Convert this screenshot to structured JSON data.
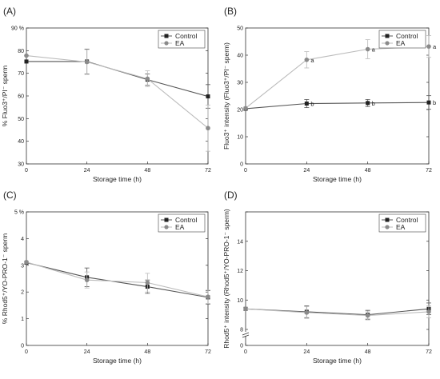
{
  "figure": {
    "background": "#ffffff"
  },
  "series_styles": {
    "Control": {
      "color": "#222222",
      "line": "#555555",
      "marker": "square"
    },
    "EA": {
      "color": "#8a8a8a",
      "line": "#bbbbbb",
      "marker": "circle"
    }
  },
  "chart_data": [
    {
      "id": "A",
      "panel_label": "(A)",
      "type": "line",
      "x": [
        0,
        24,
        48,
        72
      ],
      "xticks": [
        "0",
        "24",
        "48",
        "72"
      ],
      "xlabel": "Storage time (h)",
      "ylabel": "% Fluo3⁺/PI⁻ sperm",
      "ylim": [
        30,
        90
      ],
      "yticks": [
        30,
        40,
        50,
        60,
        70,
        80,
        90
      ],
      "ytick_labels": [
        "30",
        "40",
        "50",
        "60",
        "70",
        "80",
        "90 %"
      ],
      "axis_break": false,
      "legend": {
        "position": "top-right",
        "entries": [
          "Control",
          "EA"
        ]
      },
      "series": [
        {
          "name": "Control",
          "values": [
            75.2,
            75.2,
            67.2,
            59.8
          ],
          "errors": [
            0,
            5.5,
            2.5,
            5.2
          ],
          "labels": [
            "",
            "",
            "",
            ""
          ]
        },
        {
          "name": "EA",
          "values": [
            77.8,
            75.0,
            67.6,
            45.8
          ],
          "errors": [
            0,
            5.5,
            3.5,
            10.2
          ],
          "labels": [
            "",
            "",
            "",
            ""
          ]
        }
      ]
    },
    {
      "id": "B",
      "panel_label": "(B)",
      "type": "line",
      "x": [
        0,
        24,
        48,
        72
      ],
      "xticks": [
        "0",
        "24",
        "48",
        "72"
      ],
      "xlabel": "Storage time (h)",
      "ylabel": "Fluo3⁺ intensity (Fluo3⁺/PI⁻ sperm)",
      "ylim": [
        0,
        50
      ],
      "yticks": [
        0,
        10,
        20,
        30,
        40,
        50
      ],
      "ytick_labels": [
        "0",
        "10",
        "20",
        "30",
        "40",
        "50"
      ],
      "axis_break": false,
      "legend": {
        "position": "top-right",
        "entries": [
          "Control",
          "EA"
        ]
      },
      "series": [
        {
          "name": "Control",
          "values": [
            20.3,
            22.2,
            22.4,
            22.6
          ],
          "errors": [
            0,
            1.5,
            1.3,
            2.5
          ],
          "labels": [
            "",
            "b",
            "b",
            "b"
          ]
        },
        {
          "name": "EA",
          "values": [
            20.5,
            38.3,
            42.2,
            43.2
          ],
          "errors": [
            0,
            3.0,
            3.5,
            4.0
          ],
          "labels": [
            "",
            "a",
            "a",
            "a"
          ]
        }
      ]
    },
    {
      "id": "C",
      "panel_label": "(C)",
      "type": "line",
      "x": [
        0,
        24,
        48,
        72
      ],
      "xticks": [
        "0",
        "24",
        "48",
        "72"
      ],
      "xlabel": "Storage time (h)",
      "ylabel": "% Rhod5⁺/YO-PRO-1⁻ sperm",
      "ylim": [
        0,
        5
      ],
      "yticks": [
        0,
        1,
        2,
        3,
        4,
        5
      ],
      "ytick_labels": [
        "0",
        "1",
        "2",
        "3",
        "4",
        "5 %"
      ],
      "axis_break": false,
      "legend": {
        "position": "top-right",
        "entries": [
          "Control",
          "EA"
        ]
      },
      "series": [
        {
          "name": "Control",
          "values": [
            3.1,
            2.55,
            2.2,
            1.8
          ],
          "errors": [
            0,
            0.35,
            0.25,
            0.25
          ],
          "labels": [
            "",
            "",
            "",
            ""
          ]
        },
        {
          "name": "EA",
          "values": [
            3.12,
            2.45,
            2.35,
            1.82
          ],
          "errors": [
            0,
            0.3,
            0.35,
            0.25
          ],
          "labels": [
            "",
            "",
            "",
            ""
          ]
        }
      ]
    },
    {
      "id": "D",
      "panel_label": "(D)",
      "type": "line",
      "x": [
        0,
        24,
        48,
        72
      ],
      "xticks": [
        "0",
        "24",
        "48",
        "72"
      ],
      "xlabel": "Storage time (h)",
      "ylabel": "Rhod5⁺ intensity (Rhod5⁺/YO-PRO-1⁻ sperm)",
      "ylim": [
        0,
        16
      ],
      "yticks": [
        0,
        8,
        10,
        12,
        14,
        16
      ],
      "ytick_labels": [
        "0",
        "8",
        "10",
        "12",
        "14",
        ""
      ],
      "axis_break": true,
      "legend": {
        "position": "top-right",
        "entries": [
          "Control",
          "EA"
        ]
      },
      "series": [
        {
          "name": "Control",
          "values": [
            9.4,
            9.2,
            9.0,
            9.4
          ],
          "errors": [
            0,
            0.4,
            0.3,
            0.4
          ],
          "labels": [
            "",
            "",
            "",
            ""
          ]
        },
        {
          "name": "EA",
          "values": [
            9.4,
            9.15,
            8.95,
            9.2
          ],
          "errors": [
            0,
            0.4,
            0.3,
            0.4
          ],
          "labels": [
            "",
            "",
            "",
            ""
          ]
        }
      ]
    }
  ]
}
